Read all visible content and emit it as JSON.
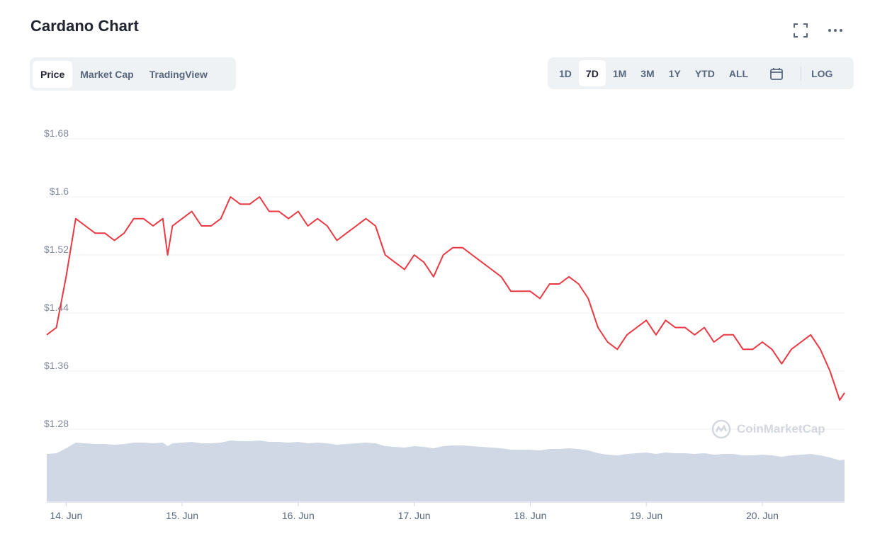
{
  "header": {
    "title": "Cardano Chart"
  },
  "tabs_left": [
    {
      "label": "Price",
      "active": true
    },
    {
      "label": "Market Cap",
      "active": false
    },
    {
      "label": "TradingView",
      "active": false
    }
  ],
  "tabs_right": {
    "ranges": [
      {
        "label": "1D",
        "active": false
      },
      {
        "label": "7D",
        "active": true
      },
      {
        "label": "1M",
        "active": false
      },
      {
        "label": "3M",
        "active": false
      },
      {
        "label": "1Y",
        "active": false
      },
      {
        "label": "YTD",
        "active": false
      },
      {
        "label": "ALL",
        "active": false
      }
    ],
    "log_label": "LOG"
  },
  "icons": {
    "expand": "expand-icon",
    "more": "more-icon",
    "calendar": "calendar-icon",
    "watermark": "coinmarketcap-logo-icon"
  },
  "watermark": "CoinMarketCap",
  "colors": {
    "line": "#ea3943",
    "volume": "#cfd6e4",
    "grid": "#eff2f5"
  },
  "chart_data": {
    "type": "line",
    "title": "Cardano Chart",
    "xlabel": "",
    "ylabel": "",
    "ylim": [
      1.28,
      1.68
    ],
    "yticks": [
      {
        "value": 1.68,
        "label": "$1.68"
      },
      {
        "value": 1.6,
        "label": "$1.6"
      },
      {
        "value": 1.52,
        "label": "$1.52"
      },
      {
        "value": 1.44,
        "label": "$1.44"
      },
      {
        "value": 1.36,
        "label": "$1.36"
      },
      {
        "value": 1.28,
        "label": "$1.28"
      }
    ],
    "xlim": [
      "13 Jun 20:00",
      "20 Jun 17:00"
    ],
    "xticks": [
      "14. Jun",
      "15. Jun",
      "16. Jun",
      "17. Jun",
      "18. Jun",
      "19. Jun",
      "20. Jun"
    ],
    "grid": true,
    "legend": "none",
    "series": [
      {
        "x": [
          "13 Jun 20:00",
          "13 Jun 22:00",
          "14 Jun 00:00",
          "14 Jun 02:00",
          "14 Jun 04:00",
          "14 Jun 06:00",
          "14 Jun 08:00",
          "14 Jun 10:00",
          "14 Jun 12:00",
          "14 Jun 14:00",
          "14 Jun 16:00",
          "14 Jun 18:00",
          "14 Jun 20:00",
          "14 Jun 21:00",
          "14 Jun 22:00",
          "15 Jun 00:00",
          "15 Jun 02:00",
          "15 Jun 04:00",
          "15 Jun 06:00",
          "15 Jun 08:00",
          "15 Jun 10:00",
          "15 Jun 12:00",
          "15 Jun 14:00",
          "15 Jun 16:00",
          "15 Jun 18:00",
          "15 Jun 20:00",
          "15 Jun 22:00",
          "16 Jun 00:00",
          "16 Jun 02:00",
          "16 Jun 04:00",
          "16 Jun 06:00",
          "16 Jun 08:00",
          "16 Jun 10:00",
          "16 Jun 12:00",
          "16 Jun 14:00",
          "16 Jun 16:00",
          "16 Jun 18:00",
          "16 Jun 20:00",
          "16 Jun 22:00",
          "17 Jun 00:00",
          "17 Jun 02:00",
          "17 Jun 04:00",
          "17 Jun 06:00",
          "17 Jun 08:00",
          "17 Jun 10:00",
          "17 Jun 12:00",
          "17 Jun 14:00",
          "17 Jun 16:00",
          "17 Jun 18:00",
          "17 Jun 20:00",
          "17 Jun 22:00",
          "18 Jun 00:00",
          "18 Jun 02:00",
          "18 Jun 04:00",
          "18 Jun 06:00",
          "18 Jun 08:00",
          "18 Jun 10:00",
          "18 Jun 12:00",
          "18 Jun 14:00",
          "18 Jun 16:00",
          "18 Jun 18:00",
          "18 Jun 20:00",
          "18 Jun 22:00",
          "19 Jun 00:00",
          "19 Jun 02:00",
          "19 Jun 04:00",
          "19 Jun 06:00",
          "19 Jun 08:00",
          "19 Jun 10:00",
          "19 Jun 12:00",
          "19 Jun 14:00",
          "19 Jun 16:00",
          "19 Jun 18:00",
          "19 Jun 20:00",
          "19 Jun 22:00",
          "20 Jun 00:00",
          "20 Jun 02:00",
          "20 Jun 04:00",
          "20 Jun 06:00",
          "20 Jun 08:00",
          "20 Jun 10:00",
          "20 Jun 12:00",
          "20 Jun 14:00",
          "20 Jun 16:00",
          "20 Jun 17:00"
        ],
        "values": [
          1.41,
          1.42,
          1.49,
          1.57,
          1.56,
          1.55,
          1.55,
          1.54,
          1.55,
          1.57,
          1.57,
          1.56,
          1.57,
          1.52,
          1.56,
          1.57,
          1.58,
          1.56,
          1.56,
          1.57,
          1.6,
          1.59,
          1.59,
          1.6,
          1.58,
          1.58,
          1.57,
          1.58,
          1.56,
          1.57,
          1.56,
          1.54,
          1.55,
          1.56,
          1.57,
          1.56,
          1.52,
          1.51,
          1.5,
          1.52,
          1.51,
          1.49,
          1.52,
          1.53,
          1.53,
          1.52,
          1.51,
          1.5,
          1.49,
          1.47,
          1.47,
          1.47,
          1.46,
          1.48,
          1.48,
          1.49,
          1.48,
          1.46,
          1.42,
          1.4,
          1.39,
          1.41,
          1.42,
          1.43,
          1.41,
          1.43,
          1.42,
          1.42,
          1.41,
          1.42,
          1.4,
          1.41,
          1.41,
          1.39,
          1.39,
          1.4,
          1.39,
          1.37,
          1.39,
          1.4,
          1.41,
          1.39,
          1.36,
          1.32,
          1.33
        ]
      }
    ]
  }
}
